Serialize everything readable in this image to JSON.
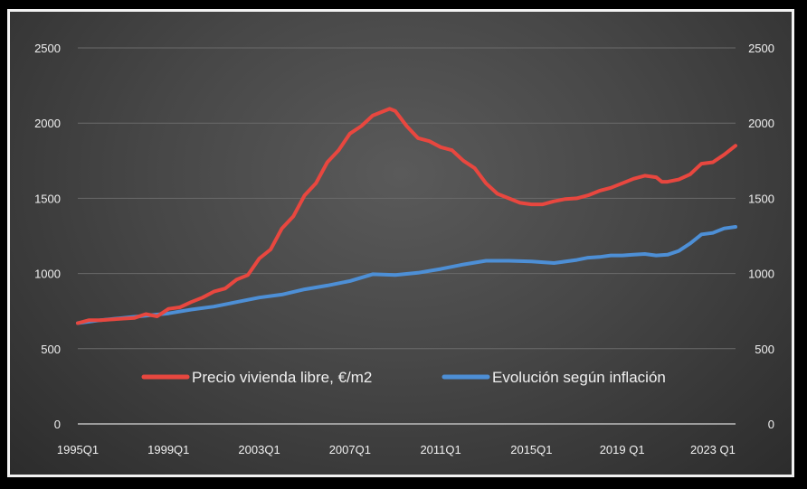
{
  "chart_data": {
    "type": "line",
    "title": "",
    "xlabel": "",
    "ylabel": "",
    "ylim": [
      0,
      2500
    ],
    "y_ticks": [
      "0",
      "500",
      "1000",
      "1500",
      "2000",
      "2500"
    ],
    "y_tick_values": [
      0,
      500,
      1000,
      1500,
      2000,
      2500
    ],
    "x_tick_labels": [
      "1995Q1",
      "1999Q1",
      "2003Q1",
      "2007Q1",
      "2011Q1",
      "2015Q1",
      "2019 Q1",
      "2023 Q1"
    ],
    "x_tick_values": [
      1995,
      1999,
      2003,
      2007,
      2011,
      2015,
      2019,
      2023
    ],
    "xlim": [
      1995,
      2024
    ],
    "grid": true,
    "legend_position": "bottom-center",
    "series": [
      {
        "name": "Precio vivienda libre, €/m2",
        "color": "#e8473f",
        "points": [
          [
            1995.0,
            670
          ],
          [
            1995.5,
            690
          ],
          [
            1996.0,
            690
          ],
          [
            1996.5,
            695
          ],
          [
            1997.0,
            700
          ],
          [
            1997.5,
            705
          ],
          [
            1998.0,
            730
          ],
          [
            1998.5,
            715
          ],
          [
            1999.0,
            765
          ],
          [
            1999.5,
            775
          ],
          [
            2000.0,
            810
          ],
          [
            2000.5,
            840
          ],
          [
            2001.0,
            880
          ],
          [
            2001.5,
            900
          ],
          [
            2002.0,
            960
          ],
          [
            2002.5,
            990
          ],
          [
            2003.0,
            1100
          ],
          [
            2003.5,
            1160
          ],
          [
            2004.0,
            1300
          ],
          [
            2004.5,
            1380
          ],
          [
            2005.0,
            1520
          ],
          [
            2005.5,
            1600
          ],
          [
            2006.0,
            1740
          ],
          [
            2006.5,
            1820
          ],
          [
            2007.0,
            1930
          ],
          [
            2007.5,
            1980
          ],
          [
            2008.0,
            2050
          ],
          [
            2008.5,
            2080
          ],
          [
            2008.75,
            2095
          ],
          [
            2009.0,
            2080
          ],
          [
            2009.5,
            1980
          ],
          [
            2010.0,
            1900
          ],
          [
            2010.5,
            1880
          ],
          [
            2011.0,
            1840
          ],
          [
            2011.5,
            1820
          ],
          [
            2012.0,
            1750
          ],
          [
            2012.5,
            1700
          ],
          [
            2013.0,
            1600
          ],
          [
            2013.5,
            1530
          ],
          [
            2014.0,
            1500
          ],
          [
            2014.5,
            1470
          ],
          [
            2015.0,
            1460
          ],
          [
            2015.5,
            1460
          ],
          [
            2016.0,
            1480
          ],
          [
            2016.5,
            1495
          ],
          [
            2017.0,
            1500
          ],
          [
            2017.5,
            1520
          ],
          [
            2018.0,
            1550
          ],
          [
            2018.5,
            1570
          ],
          [
            2019.0,
            1600
          ],
          [
            2019.5,
            1630
          ],
          [
            2020.0,
            1650
          ],
          [
            2020.5,
            1640
          ],
          [
            2020.75,
            1610
          ],
          [
            2021.0,
            1610
          ],
          [
            2021.5,
            1625
          ],
          [
            2022.0,
            1660
          ],
          [
            2022.5,
            1730
          ],
          [
            2023.0,
            1740
          ],
          [
            2023.5,
            1790
          ],
          [
            2024.0,
            1850
          ]
        ]
      },
      {
        "name": "Evolución según inflación",
        "color": "#4d8fd6",
        "points": [
          [
            1995.0,
            670
          ],
          [
            1996.0,
            690
          ],
          [
            1997.0,
            705
          ],
          [
            1998.0,
            720
          ],
          [
            1999.0,
            735
          ],
          [
            2000.0,
            760
          ],
          [
            2001.0,
            780
          ],
          [
            2002.0,
            810
          ],
          [
            2003.0,
            840
          ],
          [
            2004.0,
            860
          ],
          [
            2005.0,
            895
          ],
          [
            2006.0,
            920
          ],
          [
            2007.0,
            950
          ],
          [
            2008.0,
            995
          ],
          [
            2009.0,
            990
          ],
          [
            2010.0,
            1005
          ],
          [
            2011.0,
            1030
          ],
          [
            2012.0,
            1060
          ],
          [
            2013.0,
            1085
          ],
          [
            2014.0,
            1085
          ],
          [
            2015.0,
            1080
          ],
          [
            2016.0,
            1070
          ],
          [
            2017.0,
            1090
          ],
          [
            2017.5,
            1105
          ],
          [
            2018.0,
            1110
          ],
          [
            2018.5,
            1120
          ],
          [
            2019.0,
            1120
          ],
          [
            2019.5,
            1125
          ],
          [
            2020.0,
            1130
          ],
          [
            2020.5,
            1120
          ],
          [
            2021.0,
            1125
          ],
          [
            2021.5,
            1150
          ],
          [
            2022.0,
            1200
          ],
          [
            2022.5,
            1260
          ],
          [
            2023.0,
            1270
          ],
          [
            2023.5,
            1300
          ],
          [
            2024.0,
            1310
          ]
        ]
      }
    ]
  }
}
